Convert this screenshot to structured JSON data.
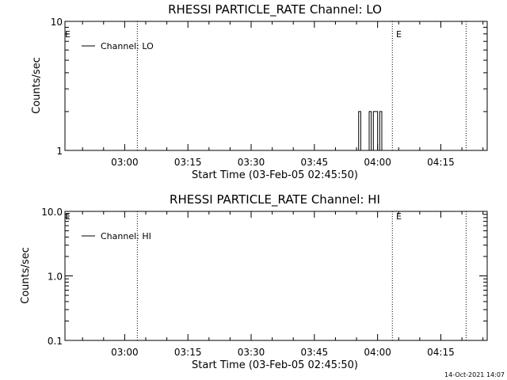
{
  "charts": [
    {
      "title": "RHESSI PARTICLE_RATE Channel: LO",
      "xlabel": "Start Time (03-Feb-05 02:45:50)",
      "ylabel": "Counts/sec",
      "legend": "Channel: LO",
      "event_marker": "E",
      "y_ticks": [
        "1",
        "10"
      ]
    },
    {
      "title": "RHESSI PARTICLE_RATE Channel: HI",
      "xlabel": "Start Time (03-Feb-05 02:45:50)",
      "ylabel": "Counts/sec",
      "legend": "Channel: HI",
      "event_marker": "E",
      "y_ticks": [
        "0.1",
        "1.0",
        "10.0"
      ]
    }
  ],
  "x_ticks": [
    "03:00",
    "03:15",
    "03:30",
    "03:45",
    "04:00",
    "04:15"
  ],
  "timestamp": "14-Oct-2021 14:07",
  "chart_data": [
    {
      "type": "line",
      "title": "RHESSI PARTICLE_RATE Channel: LO",
      "xlabel": "Start Time (03-Feb-05 02:45:50)",
      "ylabel": "Counts/sec",
      "y_scale": "log",
      "ylim": [
        1,
        10
      ],
      "xlim": [
        "02:45:50",
        "04:26:00"
      ],
      "x_tick_labels": [
        "03:00",
        "03:15",
        "03:30",
        "03:45",
        "04:00",
        "04:15"
      ],
      "vlines": [
        "03:03:00",
        "04:03:30",
        "04:21:00"
      ],
      "legend_position": "top-left",
      "series": [
        {
          "name": "Channel: LO",
          "x": [
            "03:55:00",
            "03:55:30",
            "03:56:00",
            "03:57:30",
            "03:58:00",
            "03:58:30",
            "03:59:00",
            "03:59:30",
            "04:00:00",
            "04:00:30",
            "04:01:00"
          ],
          "y": [
            1,
            2,
            1,
            1,
            2,
            1,
            2,
            2,
            1,
            2,
            1
          ]
        }
      ]
    },
    {
      "type": "line",
      "title": "RHESSI PARTICLE_RATE Channel: HI",
      "xlabel": "Start Time (03-Feb-05 02:45:50)",
      "ylabel": "Counts/sec",
      "y_scale": "log",
      "ylim": [
        0.1,
        10
      ],
      "xlim": [
        "02:45:50",
        "04:26:00"
      ],
      "x_tick_labels": [
        "03:00",
        "03:15",
        "03:30",
        "03:45",
        "04:00",
        "04:15"
      ],
      "vlines": [
        "03:03:00",
        "04:03:30",
        "04:21:00"
      ],
      "legend_position": "top-left",
      "series": [
        {
          "name": "Channel: HI",
          "x": [],
          "y": []
        }
      ]
    }
  ]
}
